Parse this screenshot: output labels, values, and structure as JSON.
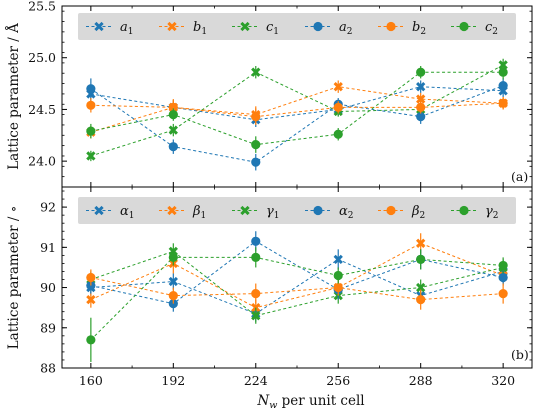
{
  "chart_data": [
    {
      "type": "line",
      "panel_label": "(a)",
      "ylabel": "Lattice parameter / Å",
      "ylim": [
        23.75,
        25.5
      ],
      "yticks": [
        24.0,
        24.5,
        25.0,
        25.5
      ],
      "ytick_labels": [
        "24.0",
        "24.5",
        "25.0",
        "25.5"
      ],
      "x": [
        160,
        192,
        224,
        256,
        288,
        320
      ],
      "legend_placement": "top",
      "grid": false,
      "series": [
        {
          "name": "a",
          "sub": "1",
          "color": "#1f77b4",
          "marker": "x",
          "values": [
            24.65,
            24.52,
            24.4,
            24.5,
            24.72,
            24.68
          ],
          "err": [
            0.08,
            0.07,
            0.07,
            0.06,
            0.06,
            0.06
          ]
        },
        {
          "name": "b",
          "sub": "1",
          "color": "#ff7f0e",
          "marker": "x",
          "values": [
            24.28,
            24.52,
            24.45,
            24.72,
            24.6,
            24.56
          ],
          "err": [
            0.06,
            0.08,
            0.08,
            0.06,
            0.06,
            0.06
          ]
        },
        {
          "name": "c",
          "sub": "1",
          "color": "#2ca02c",
          "marker": "x",
          "values": [
            24.05,
            24.3,
            24.86,
            24.48,
            24.5,
            24.93
          ],
          "err": [
            0.05,
            0.06,
            0.06,
            0.05,
            0.06,
            0.06
          ]
        },
        {
          "name": "a",
          "sub": "2",
          "color": "#1f77b4",
          "marker": "o",
          "values": [
            24.7,
            24.14,
            23.99,
            24.55,
            24.43,
            24.73
          ],
          "err": [
            0.1,
            0.07,
            0.08,
            0.06,
            0.07,
            0.07
          ]
        },
        {
          "name": "b",
          "sub": "2",
          "color": "#ff7f0e",
          "marker": "o",
          "values": [
            24.54,
            24.52,
            24.43,
            24.52,
            24.52,
            24.56
          ],
          "err": [
            0.07,
            0.07,
            0.08,
            0.06,
            0.06,
            0.06
          ]
        },
        {
          "name": "c",
          "sub": "2",
          "color": "#2ca02c",
          "marker": "o",
          "values": [
            24.29,
            24.45,
            24.16,
            24.26,
            24.86,
            24.86
          ],
          "err": [
            0.07,
            0.06,
            0.08,
            0.06,
            0.06,
            0.07
          ]
        }
      ]
    },
    {
      "type": "line",
      "panel_label": "(b)",
      "ylabel": "Lattice parameter / ∘",
      "xlabel_main": "N",
      "xlabel_sub": "w",
      "xlabel_rest": " per unit cell",
      "ylim": [
        88.0,
        92.5
      ],
      "yticks": [
        88,
        89,
        90,
        91,
        92
      ],
      "ytick_labels": [
        "88",
        "89",
        "90",
        "91",
        "92"
      ],
      "x": [
        160,
        192,
        224,
        256,
        288,
        320
      ],
      "xtick_labels": [
        "160",
        "192",
        "224",
        "256",
        "288",
        "320"
      ],
      "legend_placement": "top",
      "grid": false,
      "series": [
        {
          "name": "α",
          "sub": "1",
          "color": "#1f77b4",
          "marker": "x",
          "values": [
            90.0,
            90.15,
            89.35,
            90.7,
            89.8,
            90.4
          ],
          "err": [
            0.2,
            0.2,
            0.2,
            0.25,
            0.2,
            0.2
          ]
        },
        {
          "name": "β",
          "sub": "1",
          "color": "#ff7f0e",
          "marker": "x",
          "values": [
            89.7,
            90.6,
            89.5,
            90.0,
            91.1,
            90.3
          ],
          "err": [
            0.2,
            0.25,
            0.2,
            0.2,
            0.25,
            0.2
          ]
        },
        {
          "name": "γ",
          "sub": "1",
          "color": "#2ca02c",
          "marker": "x",
          "values": [
            90.2,
            90.9,
            89.3,
            89.8,
            90.0,
            90.5
          ],
          "err": [
            0.2,
            0.2,
            0.2,
            0.2,
            0.2,
            0.2
          ]
        },
        {
          "name": "α",
          "sub": "2",
          "color": "#1f77b4",
          "marker": "o",
          "values": [
            90.05,
            89.6,
            91.15,
            89.95,
            90.7,
            90.25
          ],
          "err": [
            0.2,
            0.2,
            0.25,
            0.25,
            0.25,
            0.2
          ]
        },
        {
          "name": "β",
          "sub": "2",
          "color": "#ff7f0e",
          "marker": "o",
          "values": [
            90.25,
            89.8,
            89.85,
            90.0,
            89.7,
            89.85
          ],
          "err": [
            0.2,
            0.2,
            0.25,
            0.2,
            0.25,
            0.25
          ]
        },
        {
          "name": "γ",
          "sub": "2",
          "color": "#2ca02c",
          "marker": "o",
          "values": [
            88.7,
            90.75,
            90.75,
            90.3,
            90.7,
            90.55
          ],
          "err": [
            0.55,
            0.2,
            0.25,
            0.2,
            0.25,
            0.2
          ]
        }
      ]
    }
  ]
}
